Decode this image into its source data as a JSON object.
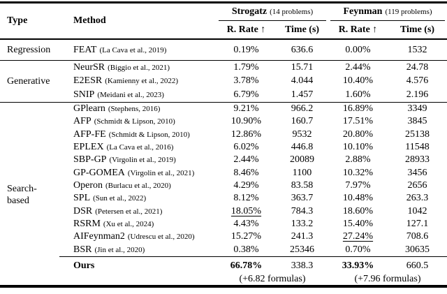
{
  "header": {
    "type": "Type",
    "method": "Method",
    "strogatz": {
      "name": "Strogatz",
      "note": "(14 problems)"
    },
    "feynman": {
      "name": "Feynman",
      "note": "(119 problems)"
    },
    "sub": {
      "rate": "R. Rate ↑",
      "time": "Time (s)"
    }
  },
  "sections": [
    {
      "type": "Regression",
      "rows": [
        {
          "method": "FEAT",
          "cite": "(La Cava et al., 2019)",
          "s_rate": "0.19%",
          "s_time": "636.6",
          "f_rate": "0.00%",
          "f_time": "1532"
        }
      ]
    },
    {
      "type": "Generative",
      "rows": [
        {
          "method": "NeurSR",
          "cite": "(Biggio et al., 2021)",
          "s_rate": "1.79%",
          "s_time": "15.71",
          "f_rate": "2.44%",
          "f_time": "24.78"
        },
        {
          "method": "E2ESR",
          "cite": "(Kamienny et al., 2022)",
          "s_rate": "3.78%",
          "s_time": "4.044",
          "f_rate": "10.40%",
          "f_time": "4.576"
        },
        {
          "method": "SNIP",
          "cite": "(Meidani et al., 2023)",
          "s_rate": "6.79%",
          "s_time": "1.457",
          "f_rate": "1.60%",
          "f_time": "2.196"
        }
      ]
    },
    {
      "type": "Search-based",
      "rows": [
        {
          "method": "GPlearn",
          "cite": "(Stephens, 2016)",
          "s_rate": "9.21%",
          "s_time": "966.2",
          "f_rate": "16.89%",
          "f_time": "3349"
        },
        {
          "method": "AFP",
          "cite": "(Schmidt & Lipson, 2010)",
          "s_rate": "10.90%",
          "s_time": "160.7",
          "f_rate": "17.51%",
          "f_time": "3845"
        },
        {
          "method": "AFP-FE",
          "cite": "(Schmidt & Lipson, 2010)",
          "s_rate": "12.86%",
          "s_time": "9532",
          "f_rate": "20.80%",
          "f_time": "25138"
        },
        {
          "method": "EPLEX",
          "cite": "(La Cava et al., 2016)",
          "s_rate": "6.02%",
          "s_time": "446.8",
          "f_rate": "10.10%",
          "f_time": "11548"
        },
        {
          "method": "SBP-GP",
          "cite": "(Virgolin et al., 2019)",
          "s_rate": "2.44%",
          "s_time": "20089",
          "f_rate": "2.88%",
          "f_time": "28933"
        },
        {
          "method": "GP-GOMEA",
          "cite": "(Virgolin et al., 2021)",
          "s_rate": "8.46%",
          "s_time": "1100",
          "f_rate": "10.32%",
          "f_time": "3456"
        },
        {
          "method": "Operon",
          "cite": "(Burlacu et al., 2020)",
          "s_rate": "4.29%",
          "s_time": "83.58",
          "f_rate": "7.97%",
          "f_time": "2656"
        },
        {
          "method": "SPL",
          "cite": "(Sun et al., 2022)",
          "s_rate": "8.12%",
          "s_time": "363.7",
          "f_rate": "10.48%",
          "f_time": "263.3"
        },
        {
          "method": "DSR",
          "cite": "(Petersen et al., 2021)",
          "s_rate": "18.05%",
          "s_time": "784.3",
          "f_rate": "18.60%",
          "f_time": "1042"
        },
        {
          "method": "RSRM",
          "cite": "(Xu et al., 2024)",
          "s_rate": "4.43%",
          "s_time": "133.2",
          "f_rate": "15.40%",
          "f_time": "127.1"
        },
        {
          "method": "AIFeynman2",
          "cite": "(Udrescu et al., 2020)",
          "s_rate": "15.27%",
          "s_time": "241.3",
          "f_rate": "27.24%",
          "f_time": "708.6"
        },
        {
          "method": "BSR",
          "cite": "(Jin et al., 2020)",
          "s_rate": "0.38%",
          "s_time": "25346",
          "f_rate": "0.70%",
          "f_time": "30635"
        }
      ]
    }
  ],
  "ours": {
    "label": "Ours",
    "s_rate": "66.78%",
    "s_time": "338.3",
    "s_note": "(+6.82 formulas)",
    "f_rate": "33.93%",
    "f_time": "660.5",
    "f_note": "(+7.96 formulas)"
  }
}
